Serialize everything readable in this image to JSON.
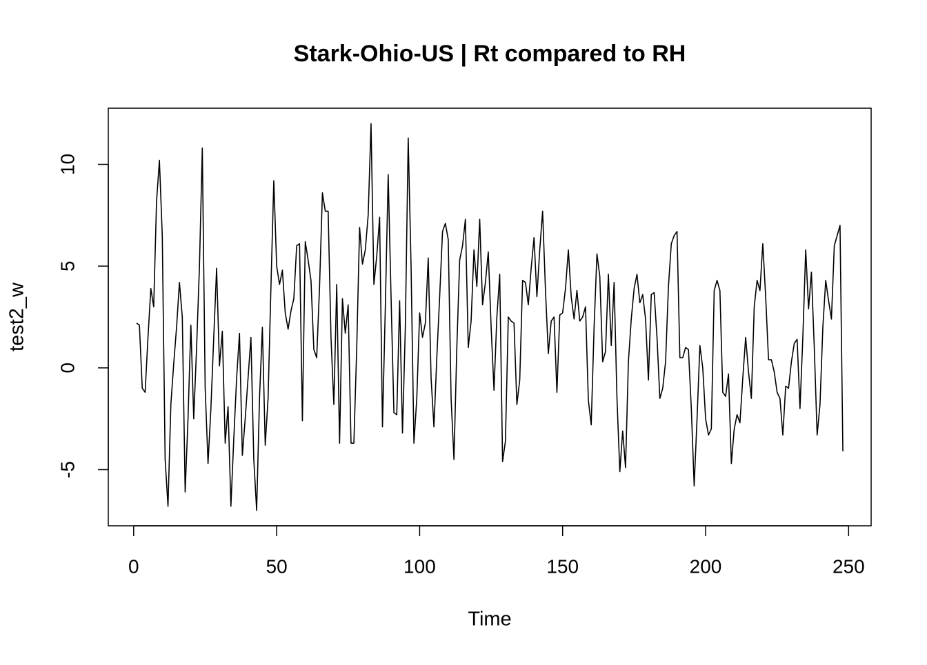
{
  "chart_data": {
    "type": "line",
    "title": "Stark-Ohio-US | Rt compared to RH",
    "x_label": "Time",
    "y_label": "test2_w",
    "x": [
      1,
      2,
      3,
      4,
      5,
      6,
      7,
      8,
      9,
      10,
      11,
      12,
      13,
      14,
      15,
      16,
      17,
      18,
      19,
      20,
      21,
      22,
      23,
      24,
      25,
      26,
      27,
      28,
      29,
      30,
      31,
      32,
      33,
      34,
      35,
      36,
      37,
      38,
      39,
      40,
      41,
      42,
      43,
      44,
      45,
      46,
      47,
      48,
      49,
      50,
      51,
      52,
      53,
      54,
      55,
      56,
      57,
      58,
      59,
      60,
      61,
      62,
      63,
      64,
      65,
      66,
      67,
      68,
      69,
      70,
      71,
      72,
      73,
      74,
      75,
      76,
      77,
      78,
      79,
      80,
      81,
      82,
      83,
      84,
      85,
      86,
      87,
      88,
      89,
      90,
      91,
      92,
      93,
      94,
      95,
      96,
      97,
      98,
      99,
      100,
      101,
      102,
      103,
      104,
      105,
      106,
      107,
      108,
      109,
      110,
      111,
      112,
      113,
      114,
      115,
      116,
      117,
      118,
      119,
      120,
      121,
      122,
      123,
      124,
      125,
      126,
      127,
      128,
      129,
      130,
      131,
      132,
      133,
      134,
      135,
      136,
      137,
      138,
      139,
      140,
      141,
      142,
      143,
      144,
      145,
      146,
      147,
      148,
      149,
      150,
      151,
      152,
      153,
      154,
      155,
      156,
      157,
      158,
      159,
      160,
      161,
      162,
      163,
      164,
      165,
      166,
      167,
      168,
      169,
      170,
      171,
      172,
      173,
      174,
      175,
      176,
      177,
      178,
      179,
      180,
      181,
      182,
      183,
      184,
      185,
      186,
      187,
      188,
      189,
      190,
      191,
      192,
      193,
      194,
      195,
      196,
      197,
      198,
      199,
      200,
      201,
      202,
      203,
      204,
      205,
      206,
      207,
      208,
      209,
      210,
      211,
      212,
      213,
      214,
      215,
      216,
      217,
      218,
      219,
      220,
      221,
      222,
      223,
      224,
      225,
      226,
      227,
      228,
      229,
      230,
      231,
      232,
      233,
      234,
      235,
      236,
      237,
      238,
      239,
      240,
      241,
      242,
      243,
      244,
      245,
      246,
      247,
      248
    ],
    "series": [
      {
        "name": "test2_w",
        "color": "#000000",
        "values": [
          2.2,
          2.1,
          -1.0,
          -1.2,
          1.5,
          3.9,
          3.0,
          8.2,
          10.2,
          6.5,
          -4.5,
          -6.8,
          -1.8,
          0.2,
          2.0,
          4.2,
          2.5,
          -6.1,
          -2.5,
          2.1,
          -2.5,
          1.0,
          5.0,
          10.8,
          -1.0,
          -4.7,
          -2.0,
          1.5,
          4.9,
          0.1,
          1.8,
          -3.7,
          -1.9,
          -6.8,
          -3.5,
          -0.5,
          1.7,
          -4.3,
          -2.5,
          -0.5,
          1.5,
          -4.5,
          -7.0,
          -1.5,
          2.0,
          -3.8,
          -1.5,
          4.0,
          9.2,
          5.0,
          4.1,
          4.8,
          2.7,
          1.9,
          2.8,
          3.4,
          6.0,
          6.1,
          -2.6,
          6.2,
          5.3,
          4.3,
          0.9,
          0.5,
          4.0,
          8.6,
          7.7,
          7.7,
          1.5,
          -1.8,
          4.1,
          -3.7,
          3.4,
          1.7,
          3.1,
          -3.7,
          -3.7,
          1.0,
          6.9,
          5.1,
          5.8,
          7.5,
          12.0,
          4.1,
          5.5,
          7.4,
          -2.9,
          3.0,
          9.5,
          3.5,
          -2.2,
          -2.3,
          3.3,
          -3.2,
          2.0,
          11.3,
          5.0,
          -3.7,
          -1.5,
          2.7,
          1.5,
          2.2,
          5.4,
          -0.5,
          -2.9,
          0.5,
          3.5,
          6.7,
          7.1,
          6.3,
          -1.5,
          -4.5,
          1.0,
          5.3,
          6.0,
          7.3,
          1.0,
          2.3,
          5.8,
          4.0,
          7.3,
          3.1,
          4.2,
          5.7,
          2.0,
          -1.1,
          2.5,
          4.6,
          -4.6,
          -3.6,
          2.5,
          2.3,
          2.2,
          -1.8,
          -0.6,
          4.3,
          4.2,
          3.1,
          4.9,
          6.4,
          3.5,
          5.8,
          7.7,
          3.8,
          0.7,
          2.3,
          2.5,
          -1.2,
          2.6,
          2.7,
          3.9,
          5.8,
          3.5,
          2.4,
          3.8,
          2.3,
          2.5,
          3.0,
          -1.6,
          -2.8,
          2.0,
          5.6,
          4.5,
          0.3,
          0.8,
          4.6,
          1.1,
          4.2,
          -1.5,
          -5.1,
          -3.1,
          -4.9,
          0.3,
          2.4,
          3.9,
          4.6,
          3.2,
          3.6,
          2.4,
          -0.6,
          3.6,
          3.7,
          1.5,
          -1.5,
          -1.0,
          0.3,
          4.0,
          6.1,
          6.5,
          6.7,
          0.5,
          0.5,
          1.0,
          0.9,
          -2.0,
          -5.8,
          -2.5,
          1.1,
          0.0,
          -2.5,
          -3.3,
          -3.0,
          3.8,
          4.3,
          3.8,
          -1.2,
          -1.4,
          -0.3,
          -4.7,
          -3.0,
          -2.3,
          -2.7,
          -0.5,
          1.5,
          -0.2,
          -1.5,
          3.0,
          4.3,
          3.8,
          6.1,
          3.5,
          0.4,
          0.4,
          -0.2,
          -1.2,
          -1.5,
          -3.3,
          -0.9,
          -1.0,
          0.3,
          1.2,
          1.4,
          -2.0,
          1.5,
          5.8,
          2.9,
          4.7,
          1.0,
          -3.3,
          -1.8,
          2.0,
          4.3,
          3.3,
          2.4,
          6.0,
          6.5,
          7.0,
          -4.1
        ]
      }
    ],
    "xlim": [
      -8.88,
      257.88
    ],
    "xticks": [
      0,
      50,
      100,
      150,
      200,
      250
    ],
    "ylim": [
      -7.76,
      12.76
    ],
    "yticks": [
      -5,
      0,
      5,
      10
    ]
  }
}
